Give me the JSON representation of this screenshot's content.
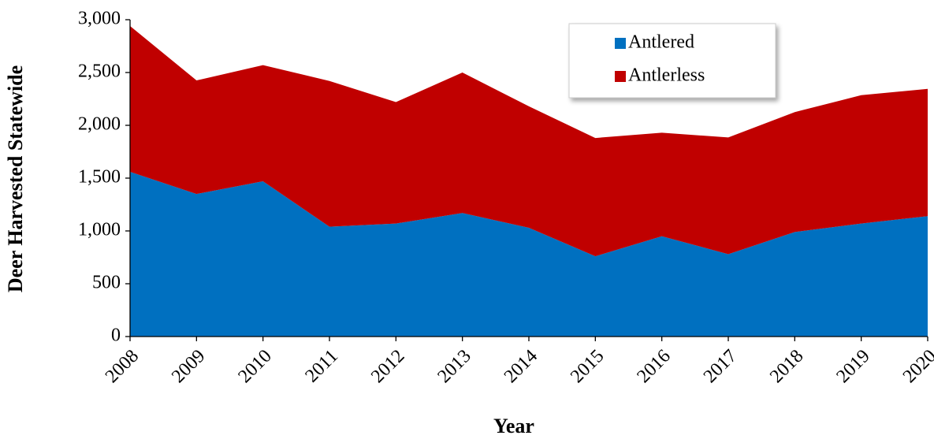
{
  "chart_data": {
    "type": "stacked_area",
    "x_label": "Year",
    "y_label": "Deer Harvested Statewide",
    "categories": [
      "2008",
      "2009",
      "2010",
      "2011",
      "2012",
      "2013",
      "2014",
      "2015",
      "2016",
      "2017",
      "2018",
      "2019",
      "2020"
    ],
    "series": [
      {
        "name": "Antlered",
        "color": "#0070c0",
        "values": [
          1560,
          1350,
          1470,
          1040,
          1070,
          1170,
          1030,
          760,
          950,
          780,
          990,
          1070,
          1140
        ]
      },
      {
        "name": "Antlerless",
        "color": "#c00000",
        "values": [
          1380,
          1075,
          1100,
          1380,
          1150,
          1330,
          1150,
          1120,
          980,
          1105,
          1135,
          1215,
          1205
        ]
      }
    ],
    "ylim": [
      0,
      3000
    ],
    "yticks": [
      0,
      500,
      {
        "value": 1000,
        "label": "1,000"
      },
      {
        "value": 1500,
        "label": "1,500"
      },
      {
        "value": 2000,
        "label": "2,000"
      },
      {
        "value": 2500,
        "label": "2,500"
      },
      {
        "value": 3000,
        "label": "3,000"
      }
    ],
    "legend": "upper right",
    "grid": false
  }
}
